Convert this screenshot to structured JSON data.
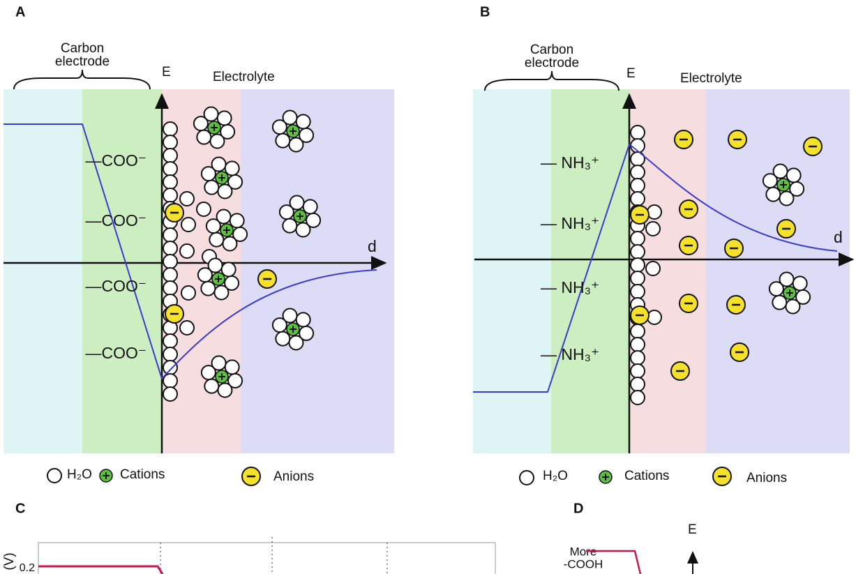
{
  "panel_a": {
    "label": "A",
    "electrode": [
      "Carbon",
      "electrode"
    ],
    "axis_e": "E",
    "electrolyte": "Electrolyte",
    "axis_d": "d",
    "surface_groups": [
      "—COO⁻",
      "—COO⁻",
      "—COO⁻",
      "—COO⁻"
    ],
    "legend": [
      "H₂O",
      "Cations",
      "Anions"
    ]
  },
  "panel_b": {
    "label": "B",
    "electrode": [
      "Carbon",
      "electrode"
    ],
    "axis_e": "E",
    "electrolyte": "Electrolyte",
    "axis_d": "d",
    "surface_groups": [
      "— NH₃⁺",
      "— NH₃⁺",
      "— NH₃⁺",
      "— NH₃⁺"
    ],
    "legend": [
      "H₂O",
      "Cations",
      "Anions"
    ]
  },
  "panel_c": {
    "label": "C",
    "y_axis_label": "(V)",
    "y_tick": "0.2"
  },
  "panel_d": {
    "label": "D",
    "annotation": [
      "More",
      "-COOH"
    ],
    "axis_e": "E"
  }
}
